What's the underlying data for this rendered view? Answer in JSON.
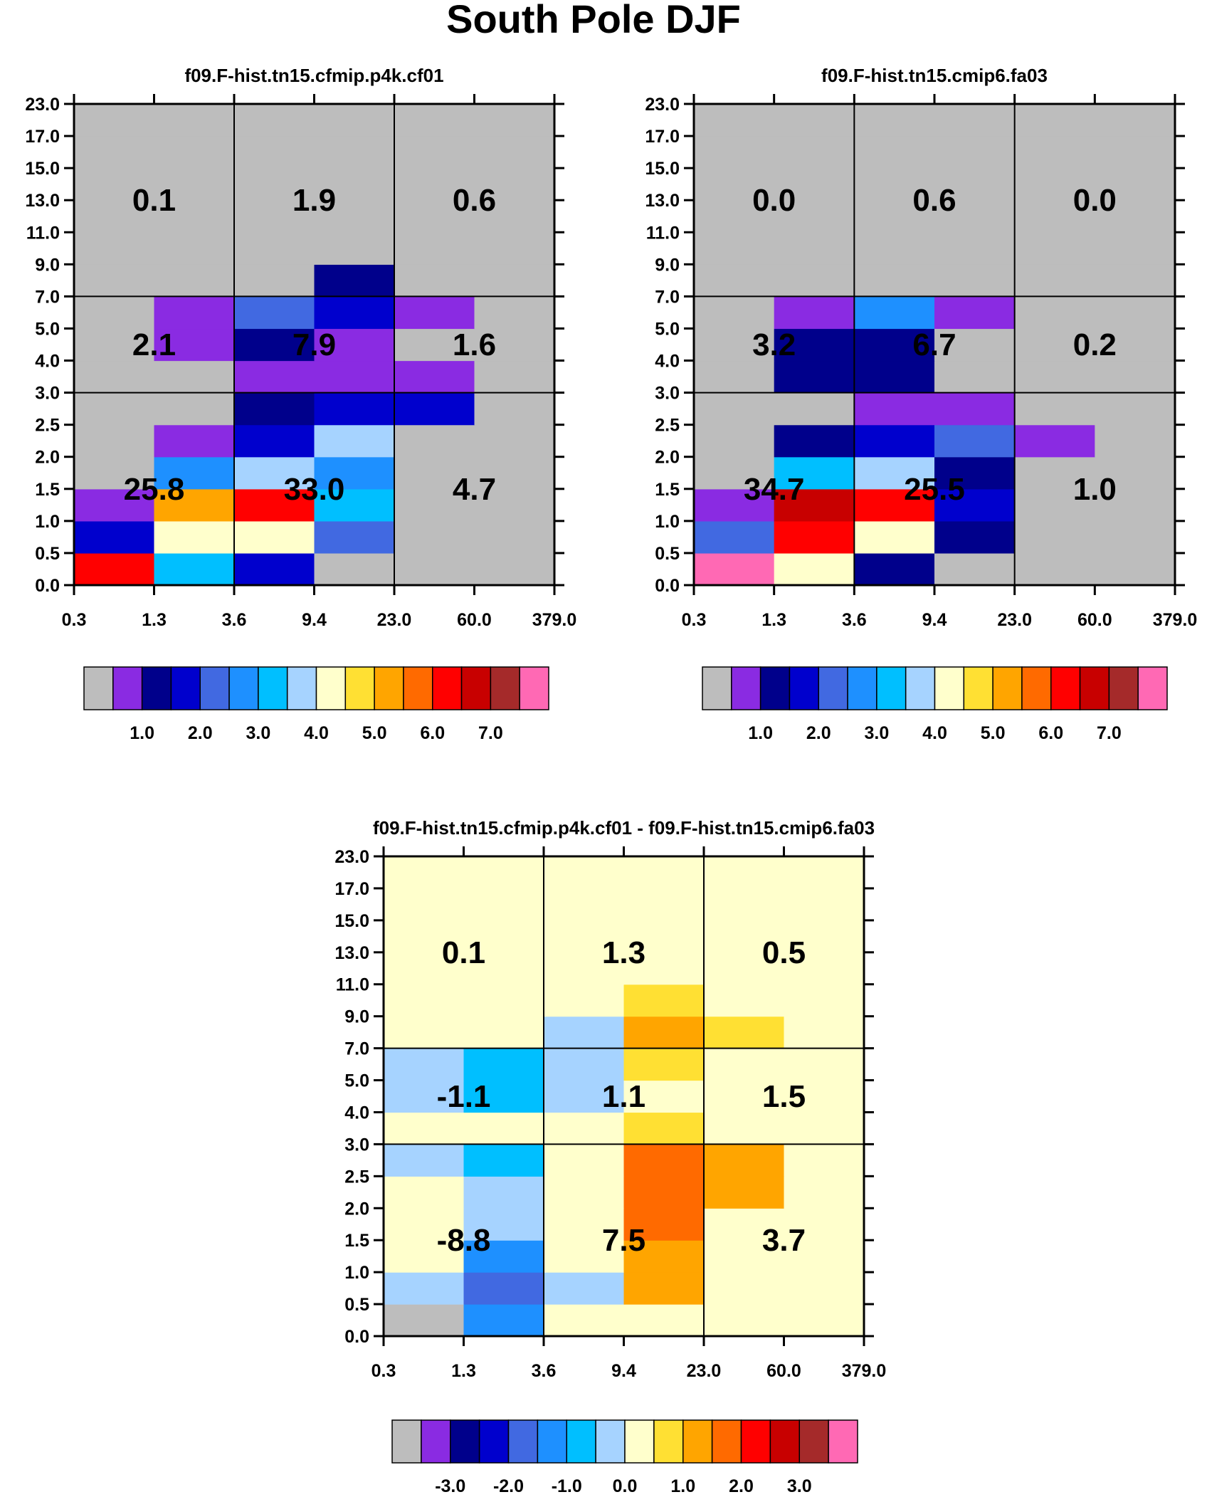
{
  "title": "South Pole DJF",
  "colors": {
    "main_scale": [
      "#bdbdbd",
      "#8a2be2",
      "#00008b",
      "#0000cd",
      "#4169e1",
      "#1e90ff",
      "#00bfff",
      "#a6d3ff",
      "#ffffcc",
      "#ffe033",
      "#ffa500",
      "#ff6a00",
      "#ff0000",
      "#c80000",
      "#a52a2a",
      "#ff69b4"
    ],
    "main_labels": [
      "1.0",
      "2.0",
      "3.0",
      "4.0",
      "5.0",
      "6.0",
      "7.0"
    ],
    "diff_labels": [
      "-3.0",
      "-2.0",
      "-1.0",
      "0.0",
      "1.0",
      "2.0",
      "3.0"
    ]
  },
  "chart_data": [
    {
      "type": "heatmap",
      "title": "f09.F-hist.tn15.cfmip.p4k.cf01",
      "x_ticks": [
        "0.3",
        "1.3",
        "3.6",
        "9.4",
        "23.0",
        "60.0",
        "379.0"
      ],
      "y_ticks": [
        "0.0",
        "0.5",
        "1.0",
        "1.5",
        "2.0",
        "2.5",
        "3.0",
        "4.0",
        "5.0",
        "7.0",
        "9.0",
        "11.0",
        "13.0",
        "15.0",
        "17.0",
        "23.0"
      ],
      "cell_color_index": [
        [
          12,
          6,
          3,
          0,
          0,
          0
        ],
        [
          3,
          8,
          8,
          4,
          0,
          0
        ],
        [
          1,
          10,
          12,
          6,
          0,
          0
        ],
        [
          0,
          5,
          7,
          5,
          0,
          0
        ],
        [
          0,
          1,
          3,
          7,
          0,
          0
        ],
        [
          0,
          0,
          2,
          3,
          3,
          0
        ],
        [
          0,
          0,
          1,
          1,
          1,
          0
        ],
        [
          0,
          1,
          2,
          1,
          0,
          0
        ],
        [
          0,
          1,
          4,
          3,
          1,
          0
        ],
        [
          0,
          0,
          0,
          2,
          0,
          0
        ],
        [
          0,
          0,
          0,
          0,
          0,
          0
        ],
        [
          0,
          0,
          0,
          0,
          0,
          0
        ],
        [
          0,
          0,
          0,
          0,
          0,
          0
        ],
        [
          0,
          0,
          0,
          0,
          0,
          0
        ],
        [
          0,
          0,
          0,
          0,
          0,
          0
        ]
      ],
      "summary_values": [
        [
          "25.8",
          "33.0",
          "4.7"
        ],
        [
          "2.1",
          "7.9",
          "1.6"
        ],
        [
          "0.1",
          "1.9",
          "0.6"
        ]
      ]
    },
    {
      "type": "heatmap",
      "title": "f09.F-hist.tn15.cmip6.fa03",
      "x_ticks": [
        "0.3",
        "1.3",
        "3.6",
        "9.4",
        "23.0",
        "60.0",
        "379.0"
      ],
      "y_ticks": [
        "0.0",
        "0.5",
        "1.0",
        "1.5",
        "2.0",
        "2.5",
        "3.0",
        "4.0",
        "5.0",
        "7.0",
        "9.0",
        "11.0",
        "13.0",
        "15.0",
        "17.0",
        "23.0"
      ],
      "cell_color_index": [
        [
          15,
          8,
          2,
          0,
          0,
          0
        ],
        [
          4,
          12,
          8,
          2,
          0,
          0
        ],
        [
          1,
          13,
          12,
          3,
          0,
          0
        ],
        [
          0,
          6,
          7,
          2,
          0,
          0
        ],
        [
          0,
          2,
          3,
          4,
          1,
          0
        ],
        [
          0,
          0,
          1,
          1,
          0,
          0
        ],
        [
          0,
          2,
          2,
          0,
          0,
          0
        ],
        [
          0,
          2,
          2,
          0,
          0,
          0
        ],
        [
          0,
          1,
          5,
          1,
          0,
          0
        ],
        [
          0,
          0,
          0,
          0,
          0,
          0
        ],
        [
          0,
          0,
          0,
          0,
          0,
          0
        ],
        [
          0,
          0,
          0,
          0,
          0,
          0
        ],
        [
          0,
          0,
          0,
          0,
          0,
          0
        ],
        [
          0,
          0,
          0,
          0,
          0,
          0
        ],
        [
          0,
          0,
          0,
          0,
          0,
          0
        ]
      ],
      "summary_values": [
        [
          "34.7",
          "25.5",
          "1.0"
        ],
        [
          "3.2",
          "6.7",
          "0.2"
        ],
        [
          "0.0",
          "0.6",
          "0.0"
        ]
      ]
    },
    {
      "type": "heatmap",
      "title": "f09.F-hist.tn15.cfmip.p4k.cf01 - f09.F-hist.tn15.cmip6.fa03",
      "x_ticks": [
        "0.3",
        "1.3",
        "3.6",
        "9.4",
        "23.0",
        "60.0",
        "379.0"
      ],
      "y_ticks": [
        "0.0",
        "0.5",
        "1.0",
        "1.5",
        "2.0",
        "2.5",
        "3.0",
        "4.0",
        "5.0",
        "7.0",
        "9.0",
        "11.0",
        "13.0",
        "15.0",
        "17.0",
        "23.0"
      ],
      "cell_color_index": [
        [
          0,
          5,
          8,
          8,
          8,
          8
        ],
        [
          7,
          4,
          7,
          10,
          8,
          8
        ],
        [
          8,
          5,
          8,
          10,
          8,
          8
        ],
        [
          8,
          7,
          8,
          11,
          8,
          8
        ],
        [
          8,
          7,
          8,
          11,
          10,
          8
        ],
        [
          7,
          6,
          8,
          11,
          10,
          8
        ],
        [
          8,
          8,
          8,
          9,
          8,
          8
        ],
        [
          7,
          6,
          7,
          8,
          8,
          8
        ],
        [
          7,
          6,
          7,
          9,
          8,
          8
        ],
        [
          8,
          8,
          7,
          10,
          9,
          8
        ],
        [
          8,
          8,
          8,
          9,
          8,
          8
        ],
        [
          8,
          8,
          8,
          8,
          8,
          8
        ],
        [
          8,
          8,
          8,
          8,
          8,
          8
        ],
        [
          8,
          8,
          8,
          8,
          8,
          8
        ],
        [
          8,
          8,
          8,
          8,
          8,
          8
        ]
      ],
      "summary_values": [
        [
          "-8.8",
          "7.5",
          "3.7"
        ],
        [
          "-1.1",
          "1.1",
          "1.5"
        ],
        [
          "0.1",
          "1.3",
          "0.5"
        ]
      ]
    }
  ]
}
